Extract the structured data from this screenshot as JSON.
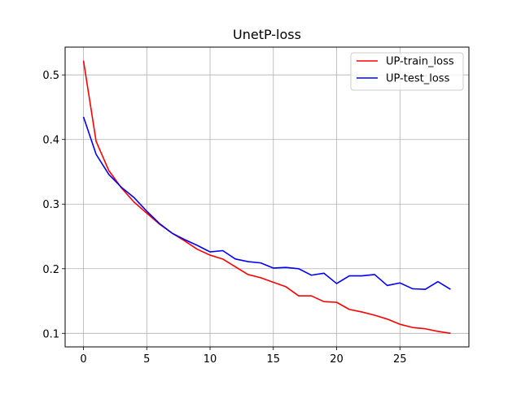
{
  "chart_data": {
    "type": "line",
    "title": "UnetP-loss",
    "xlabel": "",
    "ylabel": "",
    "xlim": [
      -1.45,
      30.45
    ],
    "ylim": [
      0.079,
      0.543
    ],
    "xticks": [
      0,
      5,
      10,
      15,
      20,
      25
    ],
    "yticks": [
      0.1,
      0.2,
      0.3,
      0.4,
      0.5
    ],
    "xtick_labels": [
      "0",
      "5",
      "10",
      "15",
      "20",
      "25"
    ],
    "ytick_labels": [
      "0.1",
      "0.2",
      "0.3",
      "0.4",
      "0.5"
    ],
    "grid": true,
    "legend_position": "top-right",
    "x": [
      0,
      1,
      2,
      3,
      4,
      5,
      6,
      7,
      8,
      9,
      10,
      11,
      12,
      13,
      14,
      15,
      16,
      17,
      18,
      19,
      20,
      21,
      22,
      23,
      24,
      25,
      26,
      27,
      28,
      29
    ],
    "series": [
      {
        "name": "UP-train_loss",
        "color": "#ff0000",
        "values": [
          0.522,
          0.397,
          0.352,
          0.325,
          0.303,
          0.286,
          0.269,
          0.255,
          0.243,
          0.23,
          0.221,
          0.215,
          0.203,
          0.191,
          0.186,
          0.179,
          0.172,
          0.158,
          0.158,
          0.149,
          0.148,
          0.137,
          0.133,
          0.128,
          0.122,
          0.114,
          0.109,
          0.107,
          0.103,
          0.1
        ]
      },
      {
        "name": "UP-test_loss",
        "color": "#0000ff",
        "values": [
          0.435,
          0.377,
          0.346,
          0.326,
          0.31,
          0.289,
          0.27,
          0.255,
          0.245,
          0.236,
          0.226,
          0.228,
          0.215,
          0.211,
          0.209,
          0.201,
          0.202,
          0.2,
          0.19,
          0.193,
          0.177,
          0.189,
          0.189,
          0.191,
          0.174,
          0.178,
          0.169,
          0.168,
          0.18,
          0.168
        ]
      }
    ]
  }
}
